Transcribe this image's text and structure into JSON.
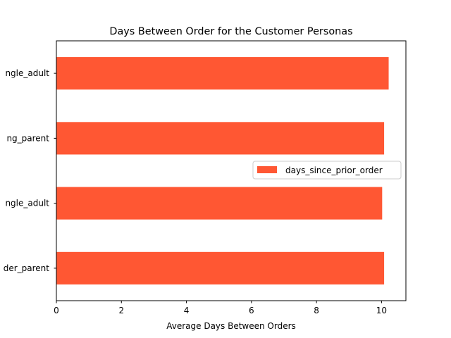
{
  "chart_data": {
    "type": "bar",
    "orientation": "horizontal",
    "title": "Days Between Order for the Customer Personas",
    "xlabel": "Average Days Between Orders",
    "ylabel": "",
    "categories": [
      "ngle_adult",
      "ng_parent",
      "ngle_adult",
      "der_parent"
    ],
    "series": [
      {
        "name": "days_since_prior_order",
        "values": [
          10.22,
          10.08,
          10.02,
          10.08
        ]
      }
    ],
    "xlim": [
      0,
      10.75
    ],
    "xticks": [
      0,
      2,
      4,
      6,
      8,
      10
    ],
    "grid": false,
    "legend_position": "center-right",
    "bar_color": "#ff5733"
  }
}
